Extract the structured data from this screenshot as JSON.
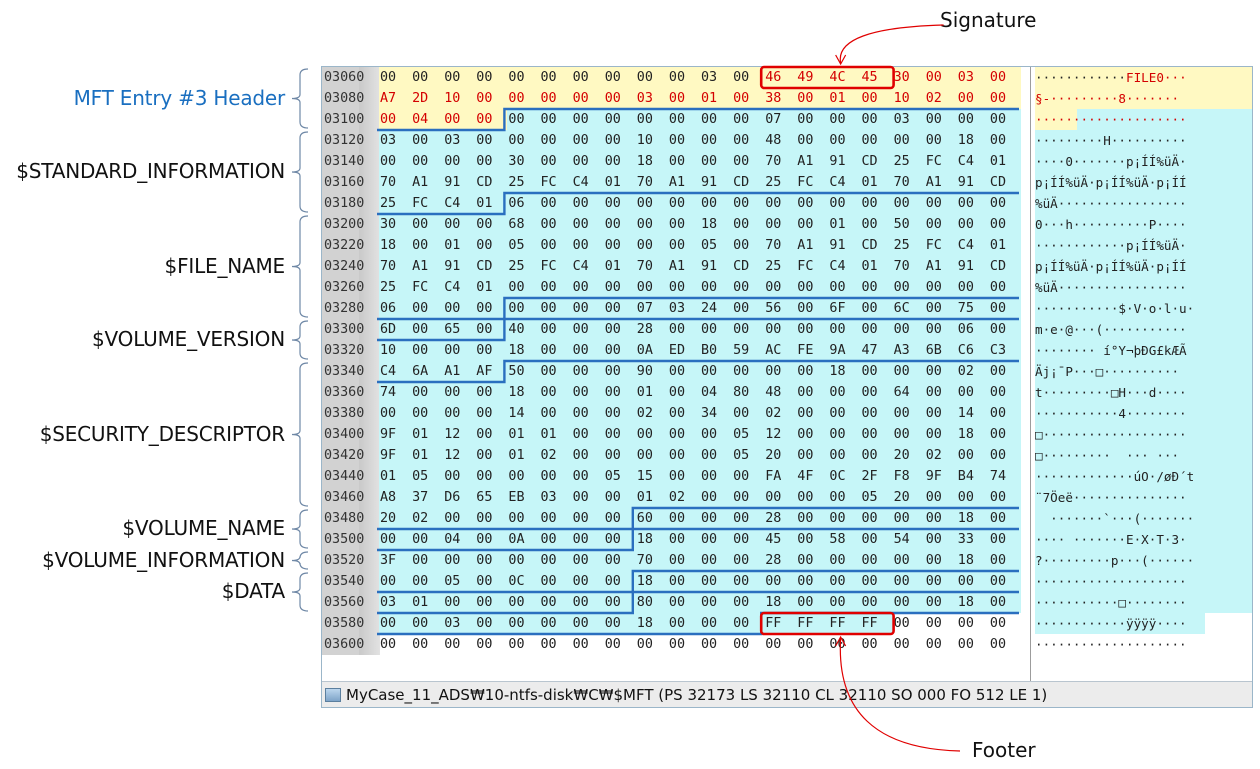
{
  "labels": [
    {
      "text": "MFT Entry #3 Header",
      "row_from": 0,
      "row_to": 2,
      "color": "#1a6fc0"
    },
    {
      "text": "$STANDARD_INFORMATION",
      "row_from": 3,
      "row_to": 6,
      "color": "#111111"
    },
    {
      "text": "$FILE_NAME",
      "row_from": 7,
      "row_to": 11,
      "color": "#111111"
    },
    {
      "text": "$VOLUME_VERSION",
      "row_from": 12,
      "row_to": 13,
      "color": "#111111"
    },
    {
      "text": "$SECURITY_DESCRIPTOR",
      "row_from": 14,
      "row_to": 20,
      "color": "#111111"
    },
    {
      "text": "$VOLUME_NAME",
      "row_from": 21,
      "row_to": 22,
      "color": "#111111"
    },
    {
      "text": "$VOLUME_INFORMATION",
      "row_from": 23,
      "row_to": 23,
      "color": "#111111"
    },
    {
      "text": "$DATA",
      "row_from": 24,
      "row_to": 25,
      "color": "#111111"
    }
  ],
  "callouts": {
    "signature": "Signature",
    "footer": "Footer"
  },
  "colors": {
    "header_bg": "#fff9c2",
    "attr_bg": "#c6f6f8",
    "highlight_red": "#d40000",
    "box_red": "#e00000",
    "boundary_blue": "#2a6fbf"
  },
  "hex": {
    "offsets": [
      "03060",
      "03080",
      "03100",
      "03120",
      "03140",
      "03160",
      "03180",
      "03200",
      "03220",
      "03240",
      "03260",
      "03280",
      "03300",
      "03320",
      "03340",
      "03360",
      "03380",
      "03400",
      "03420",
      "03440",
      "03460",
      "03480",
      "03500",
      "03520",
      "03540",
      "03560",
      "03580",
      "03600"
    ],
    "rows": [
      "00 00 00 00 00 00 00 00 00 00 03 00 46 49 4C 45 30 00 03 00",
      "A7 2D 10 00 00 00 00 00 03 00 01 00 38 00 01 00 10 02 00 00",
      "00 04 00 00 00 00 00 00 00 00 00 00 07 00 00 00 03 00 00 00",
      "03 00 03 00 00 00 00 00 10 00 00 00 48 00 00 00 00 00 18 00",
      "00 00 00 00 30 00 00 00 18 00 00 00 70 A1 91 CD 25 FC C4 01",
      "70 A1 91 CD 25 FC C4 01 70 A1 91 CD 25 FC C4 01 70 A1 91 CD",
      "25 FC C4 01 06 00 00 00 00 00 00 00 00 00 00 00 00 00 00 00",
      "30 00 00 00 68 00 00 00 00 00 18 00 00 00 01 00 50 00 00 00",
      "18 00 01 00 05 00 00 00 00 00 05 00 70 A1 91 CD 25 FC C4 01",
      "70 A1 91 CD 25 FC C4 01 70 A1 91 CD 25 FC C4 01 70 A1 91 CD",
      "25 FC C4 01 00 00 00 00 00 00 00 00 00 00 00 00 00 00 00 00",
      "06 00 00 00 00 00 00 00 07 03 24 00 56 00 6F 00 6C 00 75 00",
      "6D 00 65 00 40 00 00 00 28 00 00 00 00 00 00 00 00 00 06 00",
      "10 00 00 00 18 00 00 00 0A ED B0 59 AC FE 9A 47 A3 6B C6 C3",
      "C4 6A A1 AF 50 00 00 00 90 00 00 00 00 00 18 00 00 00 02 00",
      "74 00 00 00 18 00 00 00 01 00 04 80 48 00 00 00 64 00 00 00",
      "00 00 00 00 14 00 00 00 02 00 34 00 02 00 00 00 00 00 14 00",
      "9F 01 12 00 01 01 00 00 00 00 00 05 12 00 00 00 00 00 18 00",
      "9F 01 12 00 01 02 00 00 00 00 00 05 20 00 00 00 20 02 00 00",
      "01 05 00 00 00 00 00 05 15 00 00 00 FA 4F 0C 2F F8 9F B4 74",
      "A8 37 D6 65 EB 03 00 00 01 02 00 00 00 00 00 05 20 00 00 00",
      "20 02 00 00 00 00 00 00 60 00 00 00 28 00 00 00 00 00 18 00",
      "00 00 04 00 0A 00 00 00 18 00 00 00 45 00 58 00 54 00 33 00",
      "3F 00 00 00 00 00 00 00 70 00 00 00 28 00 00 00 00 00 18 00",
      "00 00 05 00 0C 00 00 00 18 00 00 00 00 00 00 00 00 00 00 00",
      "03 01 00 00 00 00 00 00 80 00 00 00 18 00 00 00 00 00 18 00",
      "00 00 03 00 00 00 00 00 18 00 00 00 FF FF FF FF 00 00 00 00",
      "00 00 00 00 00 00 00 00 00 00 00 00 00 00 00 00 00 00 00 00"
    ],
    "ascii": [
      "············FILE0···",
      "§-·········8·······",
      "····················",
      "·········H··········",
      "····0·······p¡ÍÍ%üÄ·",
      "p¡ÍÍ%üÄ·p¡ÍÍ%üÄ·p¡ÍÍ",
      "%üÄ·················",
      "0···h··········P····",
      "············p¡ÍÍ%üÄ·",
      "p¡ÍÍ%üÄ·p¡ÍÍ%üÄ·p¡ÍÍ",
      "%üÄ·················",
      "···········$·V·o·l·u·",
      "m·e·@···(···········",
      "········ í°Y¬þÐG£kÆÃ",
      "Äj¡¯P···□··········",
      "t·········□H···d····",
      "···········4········",
      "□···················",
      "□·········  ··· ··· ",
      "·············úO·/øÐ´t",
      "¨7Öeë··············· ",
      "  ·······`···(·······",
      "···· ·······E·X·T·3·",
      "?·········p···(······",
      "····················",
      "···········□········",
      "············ÿÿÿÿ····",
      "····················"
    ]
  },
  "status_bar": {
    "text": "MyCase_11_ADS₩10-ntfs-disk₩C₩$MFT  (PS 32173  LS 32110  CL 32110  SO 000  FO 512  LE 1)"
  }
}
